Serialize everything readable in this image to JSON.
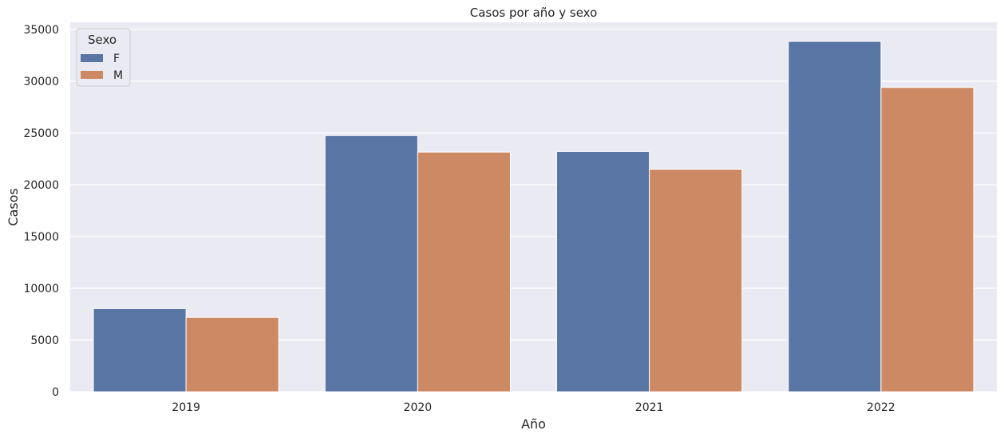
{
  "chart_data": {
    "type": "bar",
    "title": "Casos por año y sexo",
    "xlabel": "Año",
    "ylabel": "Casos",
    "categories": [
      "2019",
      "2020",
      "2021",
      "2022"
    ],
    "ylim": [
      0,
      35000
    ],
    "yticks": [
      0,
      5000,
      10000,
      15000,
      20000,
      25000,
      30000,
      35000
    ],
    "grid": true,
    "legend": {
      "title": "Sexo",
      "placement": "top-left"
    },
    "series": [
      {
        "name": "F",
        "color": "#5875a4",
        "values": [
          8050,
          24750,
          23200,
          33850
        ]
      },
      {
        "name": "M",
        "color": "#cc8963",
        "values": [
          7200,
          23150,
          21500,
          29400
        ]
      }
    ]
  },
  "style": {
    "background": "#eaeaf2",
    "grid_color": "#ffffff"
  }
}
